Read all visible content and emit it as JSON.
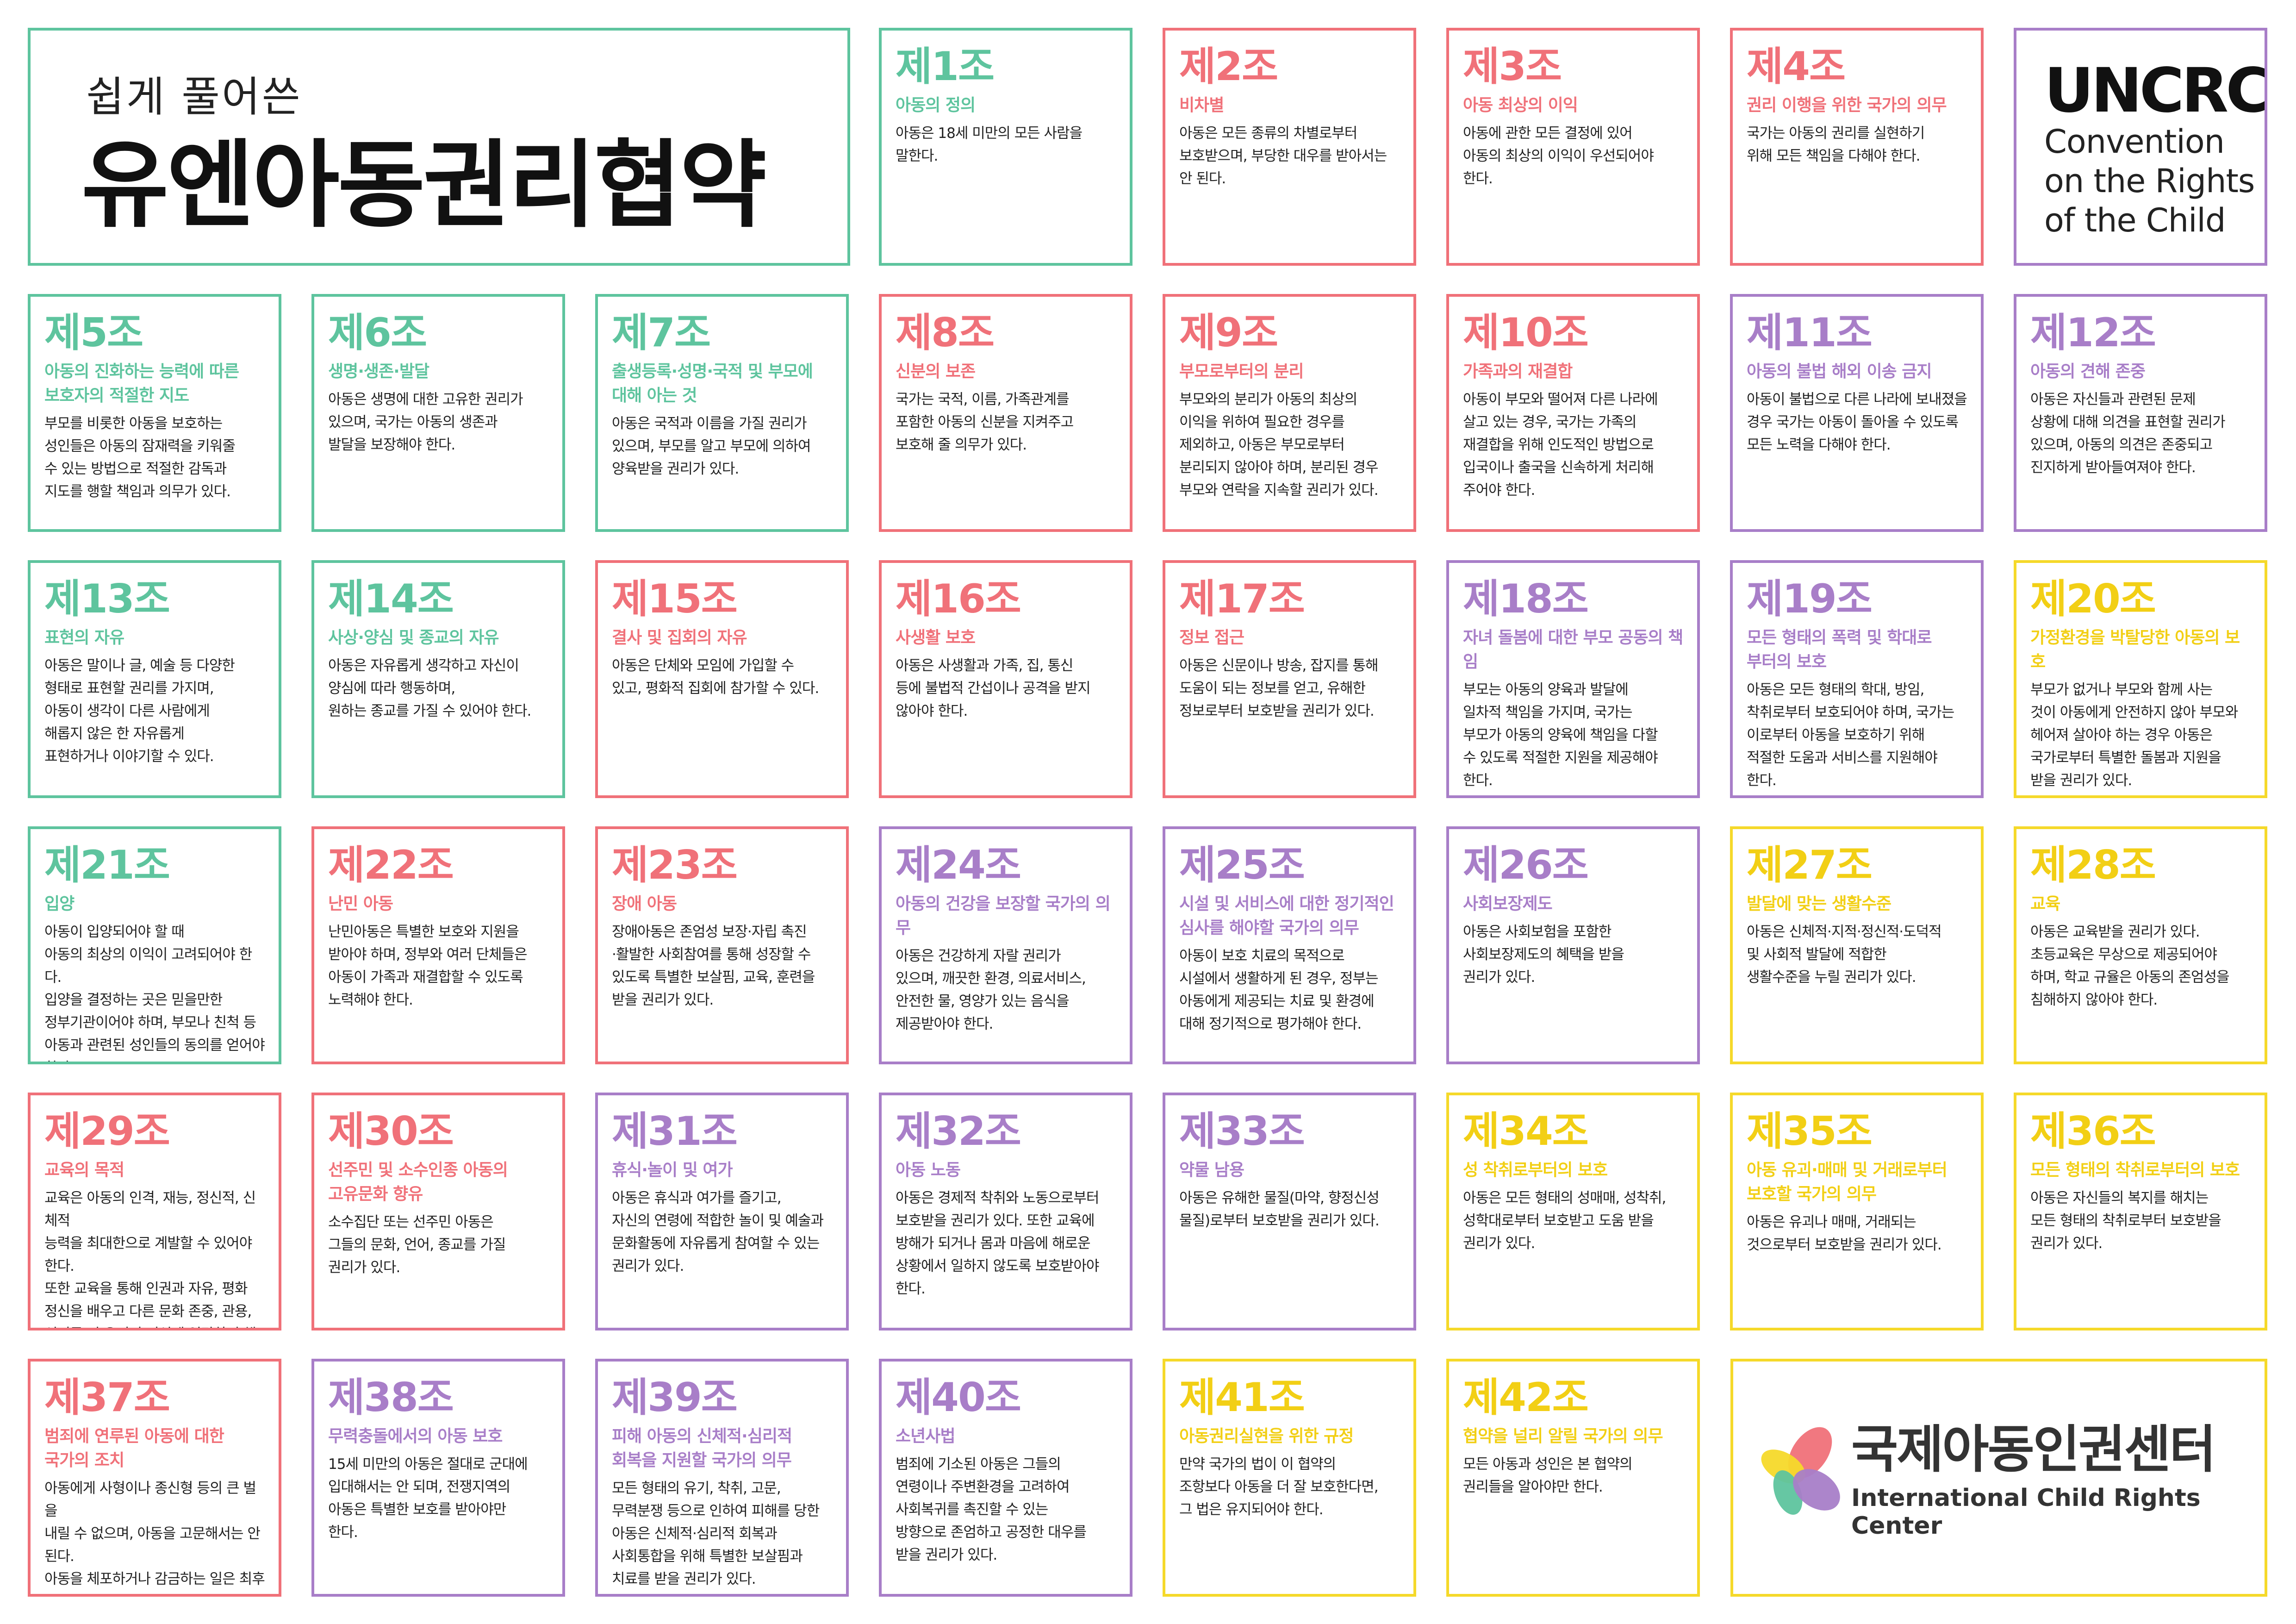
{
  "header": {
    "subtitle": "쉽게 풀어쓴",
    "title": "유엔아동권리협약"
  },
  "uncrc": {
    "acronym": "UNCRC",
    "line1": "Convention",
    "line2": "on the Rights",
    "line3": "of the Child"
  },
  "organization": {
    "name_ko": "국제아동인권센터",
    "name_en": "International Child Rights Center",
    "logo_colors": [
      "#f07179",
      "#f5d92a",
      "#5ec49e",
      "#a87ec8"
    ]
  },
  "colors": {
    "green": "#5ec49e",
    "red": "#f07179",
    "purple": "#a87ec8",
    "yellow": "#f5d92a"
  },
  "articles": [
    {
      "num": "제1조",
      "color": "green",
      "title": "아동의 정의",
      "body": "아동은 18세 미만의 모든 사람을\n말한다."
    },
    {
      "num": "제2조",
      "color": "red",
      "title": "비차별",
      "body": "아동은 모든 종류의 차별로부터\n보호받으며, 부당한 대우를 받아서는\n안 된다."
    },
    {
      "num": "제3조",
      "color": "red",
      "title": "아동 최상의 이익",
      "body": "아동에 관한 모든 결정에 있어\n아동의 최상의 이익이 우선되어야\n한다."
    },
    {
      "num": "제4조",
      "color": "red",
      "title": "권리 이행을 위한 국가의 의무",
      "body": "국가는 아동의 권리를 실현하기\n위해 모든 책임을 다해야 한다."
    },
    {
      "num": "제5조",
      "color": "green",
      "title": "아동의 진화하는 능력에 따른\n보호자의 적절한 지도",
      "body": "부모를 비롯한 아동을 보호하는\n성인들은 아동의 잠재력을 키워줄\n수 있는 방법으로 적절한 감독과\n지도를 행할 책임과 의무가 있다."
    },
    {
      "num": "제6조",
      "color": "green",
      "title": "생명·생존·발달",
      "body": "아동은 생명에 대한 고유한 권리가\n있으며, 국가는 아동의 생존과\n발달을 보장해야 한다."
    },
    {
      "num": "제7조",
      "color": "green",
      "title": "출생등록·성명·국적 및 부모에\n대해 아는 것",
      "body": "아동은 국적과 이름을 가질 권리가\n있으며, 부모를 알고 부모에 의하여\n양육받을 권리가 있다."
    },
    {
      "num": "제8조",
      "color": "red",
      "title": "신분의 보존",
      "body": "국가는 국적, 이름, 가족관계를\n포함한 아동의 신분을 지켜주고\n보호해 줄 의무가 있다."
    },
    {
      "num": "제9조",
      "color": "red",
      "title": "부모로부터의 분리",
      "body": "부모와의 분리가 아동의 최상의\n이익을 위하여 필요한 경우를\n제외하고, 아동은 부모로부터\n분리되지 않아야 하며, 분리된 경우\n부모와 연락을 지속할 권리가 있다."
    },
    {
      "num": "제10조",
      "color": "red",
      "title": "가족과의 재결합",
      "body": "아동이 부모와 떨어져 다른 나라에\n살고 있는 경우, 국가는 가족의\n재결합을 위해 인도적인 방법으로\n입국이나 출국을 신속하게 처리해\n주어야 한다."
    },
    {
      "num": "제11조",
      "color": "purple",
      "title": "아동의 불법 해외 이송 금지",
      "body": "아동이 불법으로 다른 나라에 보내졌을\n경우 국가는 아동이 돌아올 수 있도록\n모든 노력을 다해야 한다."
    },
    {
      "num": "제12조",
      "color": "purple",
      "title": "아동의 견해 존중",
      "body": "아동은 자신들과 관련된 문제\n상황에 대해 의견을 표현할 권리가\n있으며, 아동의 의견은 존중되고\n진지하게 받아들여져야 한다."
    },
    {
      "num": "제13조",
      "color": "green",
      "title": "표현의 자유",
      "body": "아동은 말이나 글, 예술 등 다양한\n형태로 표현할 권리를 가지며,\n아동이 생각이 다른 사람에게\n해롭지 않은 한 자유롭게\n표현하거나 이야기할 수 있다."
    },
    {
      "num": "제14조",
      "color": "green",
      "title": "사상·양심 및 종교의 자유",
      "body": "아동은 자유롭게 생각하고 자신이\n양심에 따라 행동하며,\n원하는 종교를 가질 수 있어야 한다."
    },
    {
      "num": "제15조",
      "color": "red",
      "title": "결사 및 집회의 자유",
      "body": "아동은 단체와 모임에 가입할 수\n있고, 평화적 집회에 참가할 수 있다."
    },
    {
      "num": "제16조",
      "color": "red",
      "title": "사생활 보호",
      "body": "아동은 사생활과 가족, 집, 통신\n등에 불법적 간섭이나 공격을 받지\n않아야 한다."
    },
    {
      "num": "제17조",
      "color": "red",
      "title": "정보 접근",
      "body": "아동은 신문이나 방송, 잡지를 통해\n도움이 되는 정보를 얻고, 유해한\n정보로부터 보호받을 권리가 있다."
    },
    {
      "num": "제18조",
      "color": "purple",
      "title": "자녀 돌봄에 대한 부모 공동의 책임",
      "body": "부모는 아동의 양육과 발달에\n일차적 책임을 가지며, 국가는\n부모가 아동의 양육에 책임을 다할\n수 있도록 적절한 지원을 제공해야\n한다."
    },
    {
      "num": "제19조",
      "color": "purple",
      "title": "모든 형태의 폭력 및 학대로\n부터의 보호",
      "body": "아동은 모든 형태의 학대, 방임,\n착취로부터 보호되어야 하며, 국가는\n이로부터 아동을 보호하기 위해\n적절한 도움과 서비스를 지원해야\n한다."
    },
    {
      "num": "제20조",
      "color": "yellow",
      "title": "가정환경을 박탈당한 아동의 보호",
      "body": "부모가 없거나 부모와 함께 사는\n것이 아동에게 안전하지 않아 부모와\n헤어져 살아야 하는 경우 아동은\n국가로부터 특별한 돌봄과 지원을\n받을 권리가 있다."
    },
    {
      "num": "제21조",
      "color": "green",
      "title": "입양",
      "body": "아동이 입양되어야 할 때\n아동의 최상의 이익이 고려되어야 한다.\n입양을 결정하는 곳은 믿을만한\n정부기관이어야 하며, 부모나 친척 등\n아동과 관련된 성인들의 동의를 얻어야\n한다."
    },
    {
      "num": "제22조",
      "color": "red",
      "title": "난민 아동",
      "body": "난민아동은 특별한 보호와 지원을\n받아야 하며, 정부와 여러 단체들은\n아동이 가족과 재결합할 수 있도록\n노력해야 한다."
    },
    {
      "num": "제23조",
      "color": "red",
      "title": "장애 아동",
      "body": "장애아동은 존엄성 보장·자립 촉진\n·활발한 사회참여를 통해 성장할 수\n있도록 특별한 보살핌, 교육, 훈련을\n받을 권리가 있다."
    },
    {
      "num": "제24조",
      "color": "purple",
      "title": "아동의 건강을 보장할 국가의 의무",
      "body": "아동은 건강하게 자랄 권리가\n있으며, 깨끗한 환경, 의료서비스,\n안전한 물, 영양가 있는 음식을\n제공받아야 한다."
    },
    {
      "num": "제25조",
      "color": "purple",
      "title": "시설 및 서비스에 대한 정기적인\n심사를 해야할 국가의 의무",
      "body": "아동이 보호 치료의 목적으로\n시설에서 생활하게 된 경우, 정부는\n아동에게 제공되는 치료 및 환경에\n대해 정기적으로 평가해야 한다."
    },
    {
      "num": "제26조",
      "color": "purple",
      "title": "사회보장제도",
      "body": "아동은 사회보험을 포함한\n사회보장제도의 혜택을 받을\n권리가 있다."
    },
    {
      "num": "제27조",
      "color": "yellow",
      "title": "발달에 맞는 생활수준",
      "body": "아동은 신체적·지적·정신적·도덕적\n및 사회적 발달에 적합한\n생활수준을 누릴 권리가 있다."
    },
    {
      "num": "제28조",
      "color": "yellow",
      "title": "교육",
      "body": "아동은 교육받을 권리가 있다.\n초등교육은 무상으로 제공되어야\n하며, 학교 규율은 아동의 존엄성을\n침해하지 않아야 한다."
    },
    {
      "num": "제29조",
      "color": "red",
      "title": "교육의 목적",
      "body": "교육은 아동의 인격, 재능, 정신적, 신체적\n능력을 최대한으로 계발할 수 있어야 한다.\n또한 교육을 통해 인권과 자유, 평화\n정신을 배우고 다른 문화 존중, 관용,\n성평등 및 우정의 정신에 입각하여 책임\n있는 삶을 살 수 있도록 준비하여야 한다."
    },
    {
      "num": "제30조",
      "color": "red",
      "title": "선주민 및 소수인종 아동의\n고유문화 향유",
      "body": "소수집단 또는 선주민 아동은\n그들의 문화, 언어, 종교를 가질\n권리가 있다."
    },
    {
      "num": "제31조",
      "color": "purple",
      "title": "휴식·놀이 및 여가",
      "body": "아동은 휴식과 여가를 즐기고,\n자신의 연령에 적합한 놀이 및 예술과\n문화활동에 자유롭게 참여할 수 있는\n권리가 있다."
    },
    {
      "num": "제32조",
      "color": "purple",
      "title": "아동 노동",
      "body": "아동은 경제적 착취와 노동으로부터\n보호받을 권리가 있다. 또한 교육에\n방해가 되거나 몸과 마음에 해로운\n상황에서 일하지 않도록 보호받아야\n한다."
    },
    {
      "num": "제33조",
      "color": "purple",
      "title": "약물 남용",
      "body": "아동은 유해한 물질(마약, 향정신성\n물질)로부터 보호받을 권리가 있다."
    },
    {
      "num": "제34조",
      "color": "yellow",
      "title": "성 착취로부터의 보호",
      "body": "아동은 모든 형태의 성매매, 성착취,\n성학대로부터 보호받고 도움 받을\n권리가 있다."
    },
    {
      "num": "제35조",
      "color": "yellow",
      "title": "아동 유괴·매매 및 거래로부터\n보호할 국가의 의무",
      "body": "아동은 유괴나 매매, 거래되는\n것으로부터 보호받을 권리가 있다."
    },
    {
      "num": "제36조",
      "color": "yellow",
      "title": "모든 형태의 착취로부터의 보호",
      "body": "아동은 자신들의 복지를 해치는\n모든 형태의 착취로부터 보호받을\n권리가 있다."
    },
    {
      "num": "제37조",
      "color": "red",
      "title": "범죄에 연루된 아동에 대한\n국가의 조치",
      "body": "아동에게 사형이나 종신형 등의 큰 벌을\n내릴 수 없으며, 아동을 고문해서는 안 된다.\n아동을 체포하거나 감금하는 일은 최후의\n방법으로 선택되어야 하며, 감금되어 있는\n동안 가족과 연락할 권리가 있다."
    },
    {
      "num": "제38조",
      "color": "purple",
      "title": "무력충돌에서의 아동 보호",
      "body": "15세 미만의 아동은 절대로 군대에\n입대해서는 안 되며, 전쟁지역의\n아동은 특별한 보호를 받아야만\n한다."
    },
    {
      "num": "제39조",
      "color": "purple",
      "title": "피해 아동의 신체적·심리적\n회복을 지원할 국가의 의무",
      "body": "모든 형태의 유기, 착취, 고문,\n무력분쟁 등으로 인하여 피해를 당한\n아동은 신체적·심리적 회복과\n사회통합을 위해 특별한 보살핌과\n치료를 받을 권리가 있다."
    },
    {
      "num": "제40조",
      "color": "purple",
      "title": "소년사법",
      "body": "범죄에 기소된 아동은 그들의\n연령이나 주변환경을 고려하여\n사회복귀를 촉진할 수 있는\n방향으로 존엄하고 공정한 대우를\n받을 권리가 있다."
    },
    {
      "num": "제41조",
      "color": "yellow",
      "title": "아동권리실현을 위한 규정",
      "body": "만약 국가의 법이 이 협약의\n조항보다 아동을 더 잘 보호한다면,\n그 법은 유지되어야 한다."
    },
    {
      "num": "제42조",
      "color": "yellow",
      "title": "협약을 널리 알릴 국가의 의무",
      "body": "모든 아동과 성인은 본 협약의\n권리들을 알아야만 한다."
    }
  ]
}
